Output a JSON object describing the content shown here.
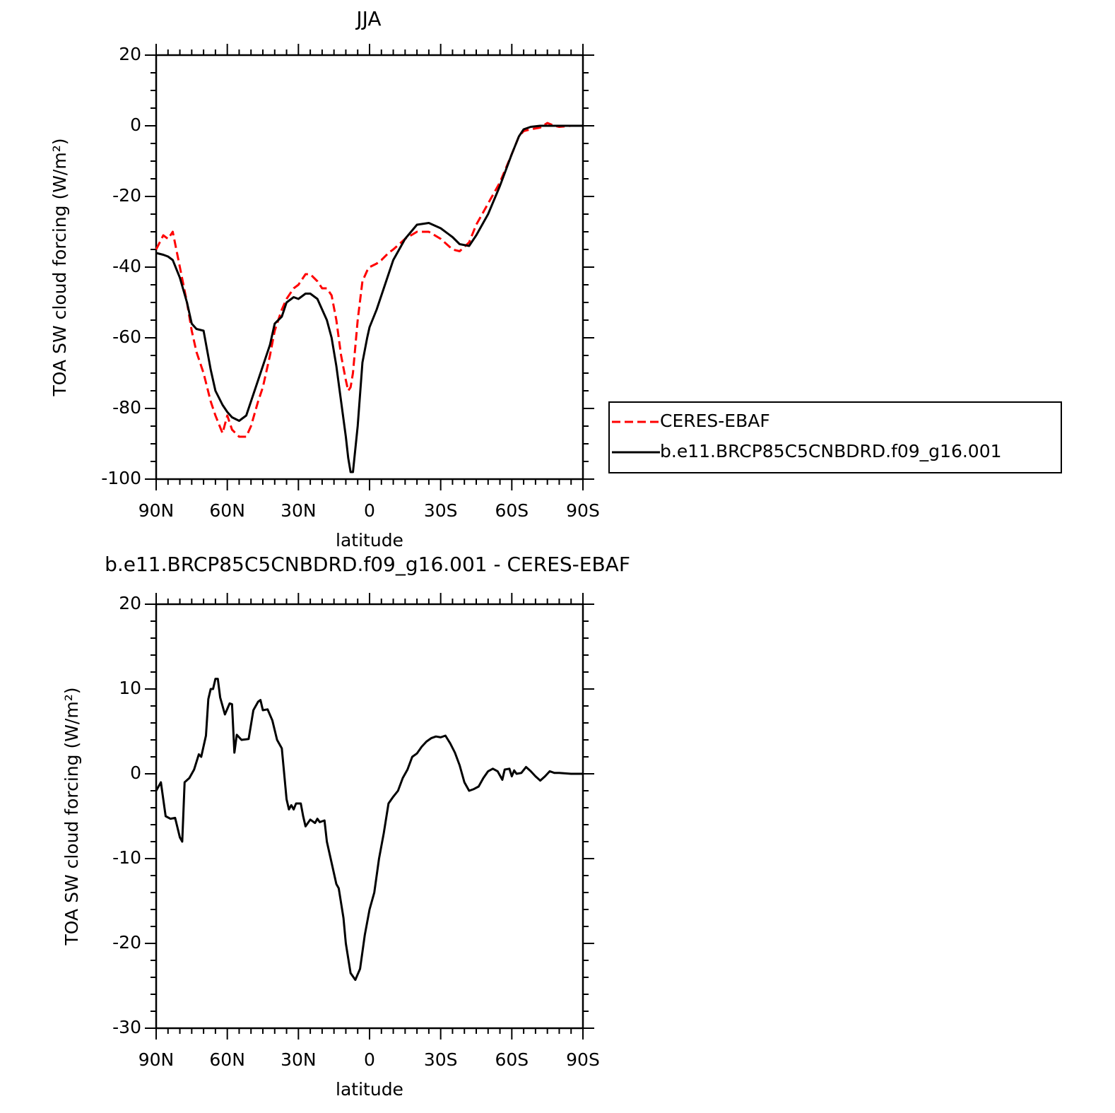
{
  "chart_data": [
    {
      "type": "line",
      "title": "JJA",
      "x_label": "latitude",
      "y_label": "TOA SW cloud forcing (W/m²)",
      "xlim": [
        90,
        -90
      ],
      "xticks": [
        {
          "value": 90,
          "label": "90N"
        },
        {
          "value": 60,
          "label": "60N"
        },
        {
          "value": 30,
          "label": "30N"
        },
        0,
        {
          "value": -30,
          "label": "30S"
        },
        {
          "value": -60,
          "label": "60S"
        },
        {
          "value": -90,
          "label": "90S"
        }
      ],
      "ylim": [
        -100,
        20
      ],
      "yticks": [
        -100,
        -80,
        -60,
        -40,
        -20,
        0,
        20
      ],
      "legend": "right",
      "x": [
        90,
        87,
        85,
        83,
        80,
        77,
        75,
        73,
        70,
        67,
        65,
        62,
        60,
        58,
        55,
        52,
        50,
        47,
        45,
        42,
        40,
        37,
        35,
        32,
        30,
        27,
        25,
        22,
        20,
        18,
        16,
        14,
        12,
        10,
        9,
        8,
        7,
        5,
        3,
        1,
        0,
        -3,
        -5,
        -8,
        -10,
        -15,
        -20,
        -25,
        -30,
        -35,
        -38,
        -42,
        -45,
        -50,
        -55,
        -60,
        -63,
        -65,
        -68,
        -72,
        -75,
        -78,
        -80,
        -85,
        -90
      ],
      "series": [
        {
          "name": "CERES-EBAF",
          "color": "#ff0000",
          "style": "dashed",
          "values": [
            -35,
            -31,
            -32,
            -30,
            -40,
            -50,
            -58,
            -64,
            -70,
            -78,
            -82,
            -87,
            -82,
            -86,
            -88,
            -88,
            -85,
            -78,
            -74,
            -65,
            -58,
            -52,
            -49,
            -46,
            -45,
            -42,
            -42,
            -44,
            -46,
            -46,
            -48,
            -55,
            -65,
            -72,
            -75,
            -74,
            -70,
            -55,
            -44,
            -41,
            -40,
            -39,
            -38,
            -36,
            -35,
            -32,
            -30,
            -30,
            -32,
            -35,
            -35.5,
            -33,
            -28,
            -22,
            -16,
            -8,
            -3,
            -1.5,
            -1,
            -0.5,
            0.8,
            0,
            -0.3,
            0,
            0
          ]
        },
        {
          "name": "b.e11.BRCP85C5CNBDRD.f09_g16.001",
          "color": "#000000",
          "style": "solid",
          "values": [
            -36,
            -36.5,
            -37,
            -38,
            -43,
            -50,
            -56,
            -57.5,
            -58,
            -69,
            -75,
            -79,
            -81,
            -82.5,
            -83.5,
            -82,
            -78,
            -72,
            -68,
            -62,
            -56,
            -54,
            -50,
            -48.5,
            -49,
            -47.5,
            -47.5,
            -49,
            -52,
            -55,
            -60,
            -68,
            -78,
            -88,
            -94,
            -98,
            -98,
            -85,
            -67,
            -60,
            -57,
            -52,
            -48,
            -42,
            -38,
            -32,
            -28,
            -27.5,
            -29,
            -31.5,
            -33.5,
            -34,
            -31,
            -25,
            -17,
            -8,
            -3,
            -1,
            -0.3,
            0,
            0,
            0,
            0,
            0,
            0
          ]
        }
      ]
    },
    {
      "type": "line",
      "title": "b.e11.BRCP85C5CNBDRD.f09_g16.001 - CERES-EBAF",
      "x_label": "latitude",
      "y_label": "TOA SW cloud forcing (W/m²)",
      "xlim": [
        90,
        -90
      ],
      "xticks": [
        {
          "value": 90,
          "label": "90N"
        },
        {
          "value": 60,
          "label": "60N"
        },
        {
          "value": 30,
          "label": "30N"
        },
        0,
        {
          "value": -30,
          "label": "30S"
        },
        {
          "value": -60,
          "label": "60S"
        },
        {
          "value": -90,
          "label": "90S"
        }
      ],
      "ylim": [
        -30,
        20
      ],
      "yticks": [
        -30,
        -20,
        -10,
        0,
        10,
        20
      ],
      "x": [
        90,
        88,
        86,
        84,
        82,
        80,
        79,
        78,
        76,
        74,
        72,
        71,
        69,
        68,
        67,
        66,
        65,
        64,
        63,
        61,
        59,
        58,
        57,
        56,
        54,
        51,
        49,
        47,
        46,
        45,
        43,
        41,
        39,
        37,
        35,
        34,
        33,
        32,
        31,
        29,
        28,
        27,
        25,
        23,
        22,
        21,
        19,
        18,
        16,
        14,
        13,
        11,
        10,
        8,
        6,
        4,
        2,
        0,
        -2,
        -4,
        -6,
        -8,
        -10,
        -12,
        -14,
        -16,
        -18,
        -20,
        -22,
        -24,
        -26,
        -28,
        -30,
        -32,
        -34,
        -36,
        -38,
        -40,
        -42,
        -44,
        -46,
        -48,
        -50,
        -52,
        -54,
        -56,
        -57,
        -59,
        -60,
        -61,
        -62,
        -64,
        -66,
        -68,
        -70,
        -72,
        -74,
        -76,
        -78,
        -80,
        -85,
        -90
      ],
      "series": [
        {
          "color": "#000000",
          "style": "solid",
          "values": [
            -2,
            -1,
            -5,
            -5.3,
            -5.2,
            -7.5,
            -8,
            -1,
            -0.5,
            0.5,
            2.3,
            2,
            4.5,
            8.8,
            10,
            10,
            11.2,
            11.2,
            9,
            7,
            8.3,
            8.2,
            2.5,
            4.6,
            4,
            4.1,
            7.5,
            8.5,
            8.7,
            7.5,
            7.6,
            6.3,
            4,
            3,
            -3,
            -4.2,
            -3.7,
            -4.2,
            -3.5,
            -3.5,
            -5,
            -6.2,
            -5.4,
            -5.8,
            -5.3,
            -5.7,
            -5.5,
            -8,
            -10.5,
            -13,
            -13.5,
            -17,
            -20,
            -23.5,
            -24.3,
            -23,
            -19,
            -16,
            -14,
            -10,
            -7,
            -3.5,
            -2.7,
            -2,
            -0.5,
            0.5,
            2,
            2.4,
            3.2,
            3.8,
            4.2,
            4.4,
            4.3,
            4.5,
            3.6,
            2.5,
            1,
            -1,
            -2,
            -1.8,
            -1.5,
            -0.5,
            0.3,
            0.6,
            0.3,
            -0.7,
            0.5,
            0.6,
            -0.3,
            0.4,
            0,
            0.1,
            0.8,
            0.3,
            -0.3,
            -0.8,
            -0.3,
            0.3,
            0.1,
            0.1,
            0,
            0
          ]
        }
      ]
    }
  ]
}
